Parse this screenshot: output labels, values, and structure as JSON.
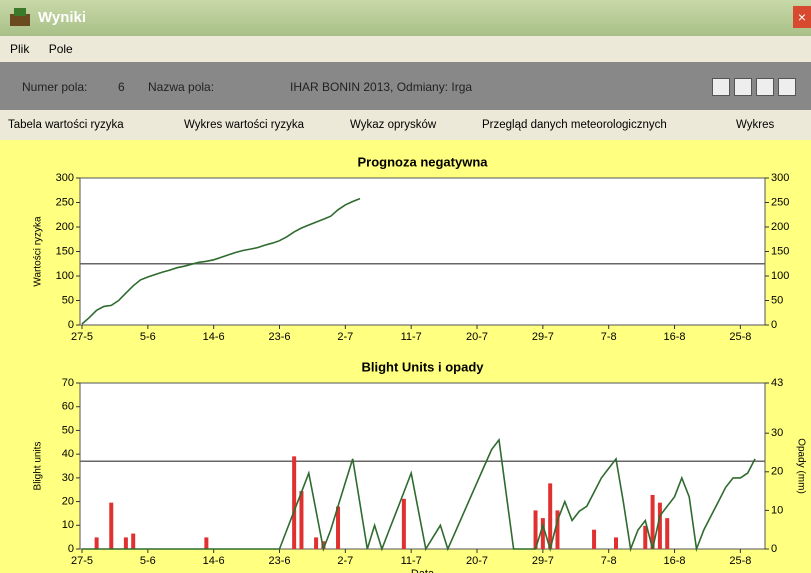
{
  "window": {
    "title": "Wyniki",
    "menu": [
      "Plik",
      "Pole"
    ],
    "toolbar": {
      "field_number_label": "Numer pola:",
      "field_number": "6",
      "field_name_label": "Nazwa pola:",
      "field_name": "IHAR BONIN 2013, Odmiany: Irga"
    },
    "tabs": [
      "Tabela wartości ryzyka",
      "Wykres wartości ryzyka",
      "Wykaz oprysków",
      "Przegląd danych meteorologicznych",
      "Wykres"
    ]
  },
  "chart_data": [
    {
      "type": "line",
      "title": "Prognoza negatywna",
      "ylabel": "Wartości ryzyka",
      "categories": [
        "27-5",
        null,
        null,
        null,
        null,
        null,
        null,
        null,
        null,
        "5-6",
        null,
        null,
        null,
        null,
        null,
        null,
        null,
        null,
        "14-6",
        null,
        null,
        null,
        null,
        null,
        null,
        null,
        null,
        "23-6",
        null,
        null,
        null,
        null,
        null,
        null,
        null,
        null,
        "2-7",
        null,
        null,
        null,
        null,
        null,
        null,
        null,
        null,
        "11-7",
        null,
        null,
        null,
        null,
        null,
        null,
        null,
        null,
        "20-7",
        null,
        null,
        null,
        null,
        null,
        null,
        null,
        null,
        "29-7",
        null,
        null,
        null,
        null,
        null,
        null,
        null,
        null,
        "7-8",
        null,
        null,
        null,
        null,
        null,
        null,
        null,
        null,
        "16-8",
        null,
        null,
        null,
        null,
        null,
        null,
        null,
        null,
        "25-8",
        null,
        null
      ],
      "series": [
        {
          "type": "line",
          "color": "#2f6b2f",
          "values": [
            2,
            15,
            30,
            38,
            40,
            50,
            65,
            80,
            92,
            98,
            103,
            108,
            112,
            117,
            120,
            124,
            128,
            130,
            133,
            138,
            143,
            148,
            152,
            155,
            158,
            163,
            167,
            172,
            180,
            190,
            198,
            204,
            210,
            216,
            222,
            235,
            245,
            252,
            258,
            null,
            null,
            null,
            null,
            null,
            null,
            null,
            null,
            null,
            null,
            null,
            null,
            null,
            null,
            null,
            null,
            null,
            null,
            null,
            null,
            null,
            null,
            null,
            null,
            null,
            null,
            null,
            null,
            null,
            null,
            null,
            null,
            null,
            null,
            null,
            null,
            null,
            null,
            null,
            null,
            null,
            null,
            null,
            null,
            null,
            null,
            null,
            null,
            null,
            null,
            null,
            null,
            null,
            null
          ]
        }
      ],
      "reference_line": 125,
      "ylim": [
        0,
        300
      ],
      "yticks": [
        0,
        50,
        100,
        150,
        200,
        250,
        300
      ],
      "y2lim": [
        0,
        300
      ],
      "y2ticks": [
        0,
        50,
        100,
        150,
        200,
        250,
        300
      ]
    },
    {
      "type": "bar_line",
      "title": "Blight Units i opady",
      "ylabel": "Blight units",
      "y2label": "Opady (mm)",
      "xlabel": "Data",
      "categories": [
        "27-5",
        null,
        null,
        null,
        null,
        null,
        null,
        null,
        null,
        "5-6",
        null,
        null,
        null,
        null,
        null,
        null,
        null,
        null,
        "14-6",
        null,
        null,
        null,
        null,
        null,
        null,
        null,
        null,
        "23-6",
        null,
        null,
        null,
        null,
        null,
        null,
        null,
        null,
        "2-7",
        null,
        null,
        null,
        null,
        null,
        null,
        null,
        null,
        "11-7",
        null,
        null,
        null,
        null,
        null,
        null,
        null,
        null,
        "20-7",
        null,
        null,
        null,
        null,
        null,
        null,
        null,
        null,
        "29-7",
        null,
        null,
        null,
        null,
        null,
        null,
        null,
        null,
        "7-8",
        null,
        null,
        null,
        null,
        null,
        null,
        null,
        null,
        "16-8",
        null,
        null,
        null,
        null,
        null,
        null,
        null,
        null,
        "25-8",
        null,
        null
      ],
      "series": [
        {
          "type": "bar",
          "axis": "y2",
          "color": "#e03030",
          "values": [
            0,
            0,
            3,
            0,
            12,
            0,
            3,
            4,
            0,
            0,
            0,
            0,
            0,
            0,
            0,
            0,
            0,
            3,
            0,
            0,
            0,
            0,
            0,
            0,
            0,
            0,
            0,
            0,
            0,
            24,
            15,
            0,
            3,
            2,
            0,
            11,
            0,
            0,
            0,
            0,
            0,
            0,
            0,
            0,
            13,
            0,
            0,
            0,
            0,
            0,
            0,
            0,
            0,
            0,
            0,
            0,
            0,
            0,
            0,
            0,
            0,
            0,
            10,
            8,
            17,
            10,
            0,
            0,
            0,
            0,
            5,
            0,
            0,
            3,
            0,
            0,
            0,
            6,
            14,
            12,
            8,
            0,
            0,
            0,
            0,
            0,
            0,
            0,
            0,
            0,
            0,
            0,
            0
          ]
        },
        {
          "type": "line",
          "color": "#2f6b2f",
          "values": [
            0,
            0,
            0,
            0,
            0,
            0,
            0,
            0,
            0,
            0,
            0,
            0,
            0,
            0,
            0,
            0,
            0,
            0,
            0,
            0,
            0,
            0,
            0,
            0,
            0,
            0,
            0,
            0,
            8,
            16,
            24,
            32,
            16,
            0,
            8,
            18,
            28,
            38,
            19,
            0,
            10,
            0,
            8,
            16,
            24,
            32,
            16,
            0,
            5,
            10,
            0,
            7,
            14,
            21,
            28,
            35,
            42,
            46,
            23,
            0,
            0,
            0,
            0,
            10,
            0,
            12,
            20,
            12,
            16,
            18,
            24,
            30,
            34,
            38,
            20,
            0,
            8,
            12,
            0,
            14,
            18,
            22,
            30,
            22,
            0,
            8,
            14,
            20,
            26,
            30,
            30,
            32,
            38
          ]
        }
      ],
      "reference_line": 37,
      "ylim": [
        0,
        70
      ],
      "yticks": [
        0,
        10,
        20,
        30,
        40,
        50,
        60,
        70
      ],
      "y2lim": [
        0,
        43
      ],
      "y2ticks": [
        0,
        10,
        20,
        30,
        43
      ]
    }
  ]
}
